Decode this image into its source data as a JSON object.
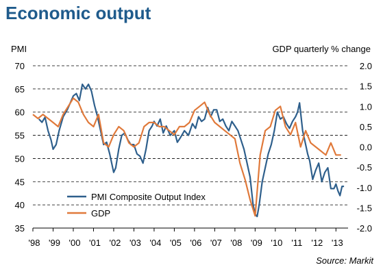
{
  "title": "Economic output",
  "source": "Source: Markit",
  "chart_data": {
    "type": "line",
    "ylabel_left": "PMI",
    "ylabel_right": "GDP quarterly % change",
    "ylim_left": [
      35,
      70
    ],
    "ylim_right": [
      -2.0,
      2.0
    ],
    "yticks_left": [
      35,
      40,
      45,
      50,
      55,
      60,
      65,
      70
    ],
    "yticks_right": [
      "2.0",
      "1.5",
      "1.0",
      "0.5",
      "0.0",
      "-0.5",
      "-1.0",
      "-1.5",
      "-2.0"
    ],
    "xlim": [
      1998.0,
      2013.6
    ],
    "xticks": [
      "'98",
      "'99",
      "'00",
      "'01",
      "'02",
      "'03",
      "'04",
      "'05",
      "'06",
      "'07",
      "'08",
      "'09",
      "'10",
      "'11",
      "'12",
      "'13"
    ],
    "grid": true,
    "legend_position": "bottom-left",
    "series": [
      {
        "name": "PMI Composite Output Index",
        "axis": "left",
        "color": "#2e5f8c",
        "points": [
          [
            1998.3,
            58.5
          ],
          [
            1998.45,
            57.8
          ],
          [
            1998.6,
            58.9
          ],
          [
            1998.75,
            56.0
          ],
          [
            1998.9,
            54.0
          ],
          [
            1999.0,
            52.0
          ],
          [
            1999.15,
            53.0
          ],
          [
            1999.3,
            56.0
          ],
          [
            1999.5,
            59.0
          ],
          [
            1999.7,
            60.5
          ],
          [
            1999.85,
            62.0
          ],
          [
            2000.0,
            63.5
          ],
          [
            2000.15,
            64.0
          ],
          [
            2000.3,
            62.5
          ],
          [
            2000.45,
            66.0
          ],
          [
            2000.6,
            65.0
          ],
          [
            2000.75,
            66.0
          ],
          [
            2000.9,
            64.5
          ],
          [
            2001.05,
            61.5
          ],
          [
            2001.2,
            59.0
          ],
          [
            2001.35,
            56.0
          ],
          [
            2001.5,
            53.0
          ],
          [
            2001.65,
            53.5
          ],
          [
            2001.8,
            51.0
          ],
          [
            2001.9,
            49.0
          ],
          [
            2002.0,
            47.0
          ],
          [
            2002.1,
            48.0
          ],
          [
            2002.25,
            52.0
          ],
          [
            2002.4,
            55.0
          ],
          [
            2002.55,
            55.5
          ],
          [
            2002.7,
            54.0
          ],
          [
            2002.85,
            53.0
          ],
          [
            2003.0,
            53.0
          ],
          [
            2003.15,
            51.0
          ],
          [
            2003.3,
            50.5
          ],
          [
            2003.45,
            49.0
          ],
          [
            2003.6,
            52.0
          ],
          [
            2003.75,
            56.0
          ],
          [
            2003.9,
            57.0
          ],
          [
            2004.0,
            58.0
          ],
          [
            2004.15,
            57.0
          ],
          [
            2004.3,
            58.5
          ],
          [
            2004.45,
            55.5
          ],
          [
            2004.6,
            57.0
          ],
          [
            2004.8,
            55.0
          ],
          [
            2005.0,
            56.0
          ],
          [
            2005.15,
            53.5
          ],
          [
            2005.3,
            54.5
          ],
          [
            2005.5,
            56.0
          ],
          [
            2005.7,
            55.0
          ],
          [
            2005.9,
            57.5
          ],
          [
            2006.05,
            56.5
          ],
          [
            2006.2,
            59.0
          ],
          [
            2006.35,
            58.0
          ],
          [
            2006.5,
            58.5
          ],
          [
            2006.65,
            61.0
          ],
          [
            2006.8,
            59.0
          ],
          [
            2006.95,
            60.5
          ],
          [
            2007.1,
            60.5
          ],
          [
            2007.25,
            58.0
          ],
          [
            2007.4,
            58.5
          ],
          [
            2007.55,
            57.0
          ],
          [
            2007.7,
            56.0
          ],
          [
            2007.85,
            58.0
          ],
          [
            2008.0,
            57.0
          ],
          [
            2008.15,
            56.0
          ],
          [
            2008.3,
            54.0
          ],
          [
            2008.45,
            52.0
          ],
          [
            2008.6,
            49.0
          ],
          [
            2008.75,
            46.0
          ],
          [
            2008.9,
            40.0
          ],
          [
            2009.0,
            38.0
          ],
          [
            2009.1,
            37.5
          ],
          [
            2009.2,
            40.0
          ],
          [
            2009.35,
            45.0
          ],
          [
            2009.5,
            48.0
          ],
          [
            2009.65,
            51.0
          ],
          [
            2009.8,
            53.0
          ],
          [
            2009.95,
            56.0
          ],
          [
            2010.1,
            60.0
          ],
          [
            2010.25,
            58.5
          ],
          [
            2010.4,
            59.0
          ],
          [
            2010.55,
            57.5
          ],
          [
            2010.7,
            56.5
          ],
          [
            2010.85,
            58.0
          ],
          [
            2011.0,
            59.0
          ],
          [
            2011.1,
            60.0
          ],
          [
            2011.2,
            62.0
          ],
          [
            2011.35,
            56.0
          ],
          [
            2011.5,
            53.0
          ],
          [
            2011.6,
            51.0
          ],
          [
            2011.7,
            49.5
          ],
          [
            2011.85,
            45.5
          ],
          [
            2012.0,
            47.5
          ],
          [
            2012.15,
            49.0
          ],
          [
            2012.3,
            45.0
          ],
          [
            2012.45,
            47.0
          ],
          [
            2012.6,
            48.0
          ],
          [
            2012.75,
            43.5
          ],
          [
            2012.9,
            43.5
          ],
          [
            2013.0,
            44.5
          ],
          [
            2013.1,
            43.0
          ],
          [
            2013.2,
            42.0
          ],
          [
            2013.3,
            44.0
          ],
          [
            2013.4,
            44.0
          ]
        ]
      },
      {
        "name": "GDP",
        "axis": "right",
        "color": "#e0793a",
        "points": [
          [
            1998.0,
            0.8
          ],
          [
            1998.25,
            0.7
          ],
          [
            1998.5,
            0.8
          ],
          [
            1998.75,
            0.7
          ],
          [
            1999.0,
            0.6
          ],
          [
            1999.25,
            0.5
          ],
          [
            1999.5,
            0.8
          ],
          [
            1999.75,
            1.0
          ],
          [
            2000.0,
            1.2
          ],
          [
            2000.25,
            1.1
          ],
          [
            2000.5,
            0.8
          ],
          [
            2000.75,
            0.6
          ],
          [
            2001.0,
            0.5
          ],
          [
            2001.25,
            0.8
          ],
          [
            2001.5,
            0.1
          ],
          [
            2001.75,
            0.0
          ],
          [
            2002.0,
            0.3
          ],
          [
            2002.25,
            0.5
          ],
          [
            2002.5,
            0.4
          ],
          [
            2002.75,
            0.1
          ],
          [
            2003.0,
            0.0
          ],
          [
            2003.25,
            0.1
          ],
          [
            2003.5,
            0.5
          ],
          [
            2003.75,
            0.6
          ],
          [
            2004.0,
            0.6
          ],
          [
            2004.25,
            0.5
          ],
          [
            2004.5,
            0.5
          ],
          [
            2004.75,
            0.4
          ],
          [
            2005.0,
            0.3
          ],
          [
            2005.25,
            0.5
          ],
          [
            2005.5,
            0.5
          ],
          [
            2005.75,
            0.6
          ],
          [
            2006.0,
            0.9
          ],
          [
            2006.25,
            1.0
          ],
          [
            2006.5,
            1.1
          ],
          [
            2006.75,
            0.8
          ],
          [
            2007.0,
            0.6
          ],
          [
            2007.25,
            0.5
          ],
          [
            2007.5,
            0.4
          ],
          [
            2007.75,
            0.3
          ],
          [
            2008.0,
            0.2
          ],
          [
            2008.25,
            -0.4
          ],
          [
            2008.5,
            -0.8
          ],
          [
            2008.75,
            -1.3
          ],
          [
            2009.0,
            -1.7
          ],
          [
            2009.25,
            -0.2
          ],
          [
            2009.5,
            0.4
          ],
          [
            2009.75,
            0.5
          ],
          [
            2010.0,
            0.9
          ],
          [
            2010.25,
            1.0
          ],
          [
            2010.5,
            0.5
          ],
          [
            2010.75,
            0.3
          ],
          [
            2011.0,
            0.6
          ],
          [
            2011.25,
            0.0
          ],
          [
            2011.5,
            0.4
          ],
          [
            2011.75,
            0.1
          ],
          [
            2012.0,
            0.0
          ],
          [
            2012.25,
            -0.1
          ],
          [
            2012.5,
            -0.2
          ],
          [
            2012.75,
            0.1
          ],
          [
            2013.0,
            -0.2
          ],
          [
            2013.25,
            -0.2
          ]
        ]
      }
    ]
  }
}
